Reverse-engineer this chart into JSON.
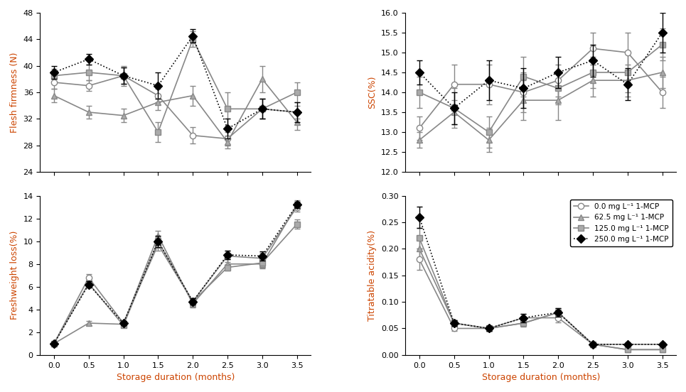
{
  "x": [
    0.0,
    0.5,
    1.0,
    1.5,
    2.0,
    2.5,
    3.0,
    3.5
  ],
  "flesh_firmness": {
    "circle": [
      37.5,
      37.0,
      38.5,
      35.5,
      29.5,
      29.0,
      33.5,
      33.0
    ],
    "triangle": [
      35.5,
      33.0,
      32.5,
      34.5,
      35.5,
      28.5,
      38.0,
      31.5
    ],
    "square": [
      38.5,
      39.0,
      38.5,
      30.0,
      44.0,
      33.5,
      33.5,
      36.0
    ],
    "diamond": [
      39.0,
      41.0,
      38.5,
      37.0,
      44.5,
      30.5,
      33.5,
      33.0
    ],
    "circle_err": [
      1.0,
      0.8,
      1.2,
      1.0,
      1.2,
      1.0,
      1.5,
      1.0
    ],
    "triangle_err": [
      1.0,
      1.0,
      1.0,
      1.2,
      1.5,
      1.0,
      2.0,
      1.2
    ],
    "square_err": [
      1.0,
      1.2,
      1.5,
      1.5,
      1.2,
      2.5,
      1.5,
      1.5
    ],
    "diamond_err": [
      1.0,
      0.8,
      1.2,
      2.0,
      1.0,
      1.5,
      1.5,
      1.5
    ],
    "ylim": [
      24,
      48
    ],
    "yticks": [
      24,
      28,
      32,
      36,
      40,
      44,
      48
    ],
    "ylabel": "Flesh firmness (N)"
  },
  "ssc": {
    "circle": [
      13.1,
      14.2,
      14.2,
      14.0,
      14.3,
      15.1,
      15.0,
      14.0
    ],
    "triangle": [
      12.8,
      13.5,
      12.8,
      13.8,
      13.8,
      14.3,
      14.3,
      14.5
    ],
    "square": [
      14.0,
      13.6,
      13.0,
      14.4,
      14.1,
      14.5,
      14.5,
      15.2
    ],
    "diamond": [
      14.5,
      13.6,
      14.3,
      14.1,
      14.5,
      14.8,
      14.2,
      15.5
    ],
    "circle_err": [
      0.3,
      0.5,
      0.5,
      0.5,
      0.4,
      0.4,
      0.5,
      0.4
    ],
    "triangle_err": [
      0.2,
      0.3,
      0.3,
      0.5,
      0.5,
      0.4,
      0.4,
      0.4
    ],
    "square_err": [
      0.4,
      0.5,
      0.4,
      0.5,
      0.4,
      0.4,
      0.5,
      0.4
    ],
    "diamond_err": [
      0.3,
      0.4,
      0.5,
      0.5,
      0.4,
      0.4,
      0.4,
      0.5
    ],
    "ylim": [
      12.0,
      16.0
    ],
    "yticks": [
      12.0,
      12.5,
      13.0,
      13.5,
      14.0,
      14.5,
      15.0,
      15.5,
      16.0
    ],
    "ylabel": "SSC(%)"
  },
  "freshweight_loss": {
    "circle": [
      1.0,
      6.8,
      2.8,
      9.7,
      4.7,
      8.7,
      8.5,
      13.0
    ],
    "triangle": [
      1.0,
      2.8,
      2.7,
      10.5,
      4.5,
      8.0,
      8.0,
      13.2
    ],
    "square": [
      1.0,
      6.3,
      2.6,
      10.0,
      4.7,
      7.7,
      8.1,
      11.5
    ],
    "diamond": [
      1.0,
      6.2,
      2.8,
      10.0,
      4.7,
      8.8,
      8.7,
      13.2
    ],
    "circle_err": [
      0.1,
      0.3,
      0.2,
      0.5,
      0.3,
      0.5,
      0.5,
      0.4
    ],
    "triangle_err": [
      0.1,
      0.2,
      0.2,
      0.4,
      0.3,
      0.4,
      0.4,
      0.4
    ],
    "square_err": [
      0.1,
      0.3,
      0.2,
      0.4,
      0.3,
      0.3,
      0.4,
      0.4
    ],
    "diamond_err": [
      0.1,
      0.3,
      0.2,
      0.5,
      0.3,
      0.4,
      0.4,
      0.3
    ],
    "ylim": [
      0,
      14
    ],
    "yticks": [
      0,
      2,
      4,
      6,
      8,
      10,
      12,
      14
    ],
    "ylabel": "Freshweight loss(%)"
  },
  "titratable_acidity": {
    "circle": [
      0.18,
      0.05,
      0.05,
      0.07,
      0.07,
      0.02,
      0.02,
      0.02
    ],
    "triangle": [
      0.2,
      0.06,
      0.05,
      0.06,
      0.08,
      0.02,
      0.01,
      0.01
    ],
    "square": [
      0.22,
      0.06,
      0.05,
      0.06,
      0.08,
      0.02,
      0.01,
      0.01
    ],
    "diamond": [
      0.26,
      0.06,
      0.05,
      0.07,
      0.08,
      0.02,
      0.02,
      0.02
    ],
    "circle_err": [
      0.02,
      0.005,
      0.005,
      0.008,
      0.008,
      0.003,
      0.003,
      0.003
    ],
    "triangle_err": [
      0.02,
      0.005,
      0.005,
      0.006,
      0.008,
      0.003,
      0.002,
      0.002
    ],
    "square_err": [
      0.02,
      0.005,
      0.005,
      0.007,
      0.008,
      0.003,
      0.002,
      0.002
    ],
    "diamond_err": [
      0.02,
      0.005,
      0.005,
      0.008,
      0.008,
      0.003,
      0.003,
      0.003
    ],
    "ylim": [
      0.0,
      0.3
    ],
    "yticks": [
      0.0,
      0.05,
      0.1,
      0.15,
      0.2,
      0.25,
      0.3
    ],
    "ylabel": "Titratable acidity(%)"
  },
  "legend_labels": [
    "0.0 mg L⁻¹ 1-MCP",
    "62.5 mg L⁻¹ 1-MCP",
    "125.0 mg L⁻¹ 1-MCP",
    "250.0 mg L⁻¹ 1-MCP"
  ],
  "xlabel": "Storage duration (months)",
  "xticks": [
    0.0,
    0.5,
    1.0,
    1.5,
    2.0,
    2.5,
    3.0,
    3.5
  ],
  "title_color": "#cc4400"
}
